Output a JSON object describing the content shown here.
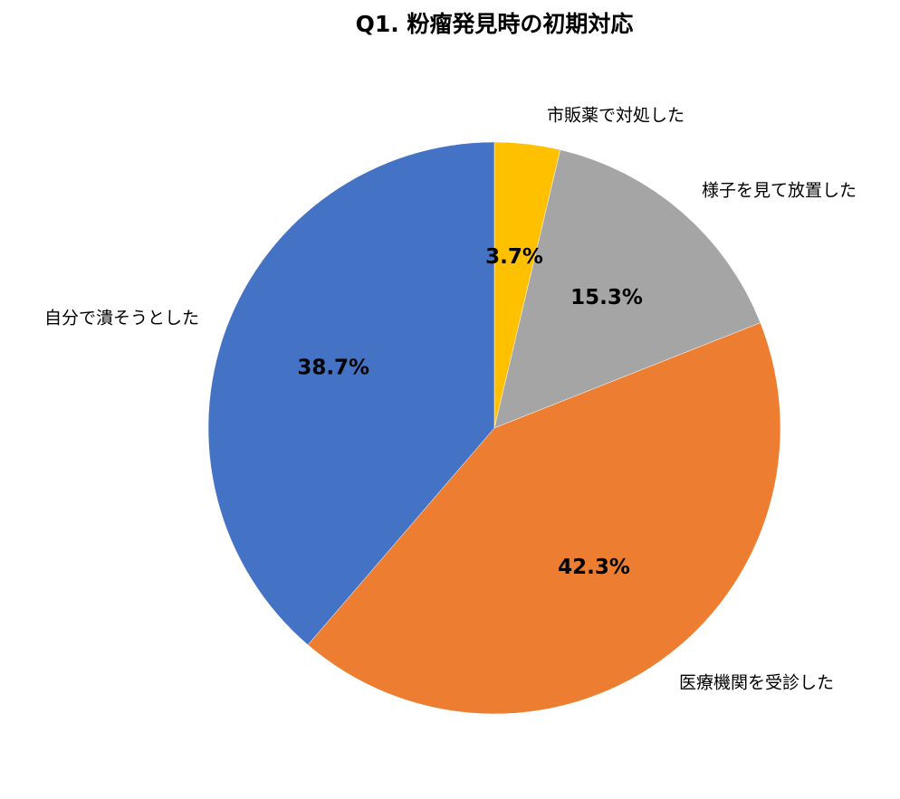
{
  "chart_data": {
    "type": "pie",
    "title": "Q1. 粉瘤発見時の初期対応",
    "categories": [
      "市販薬で対処した",
      "様子を見て放置した",
      "医療機関を受診した",
      "自分で潰そうとした"
    ],
    "values": [
      3.7,
      15.3,
      42.3,
      38.7
    ],
    "value_labels": [
      "3.7%",
      "15.3%",
      "42.3%",
      "38.7%"
    ],
    "colors": [
      "#ffc000",
      "#a5a5a5",
      "#ed7d31",
      "#4472c4"
    ]
  }
}
